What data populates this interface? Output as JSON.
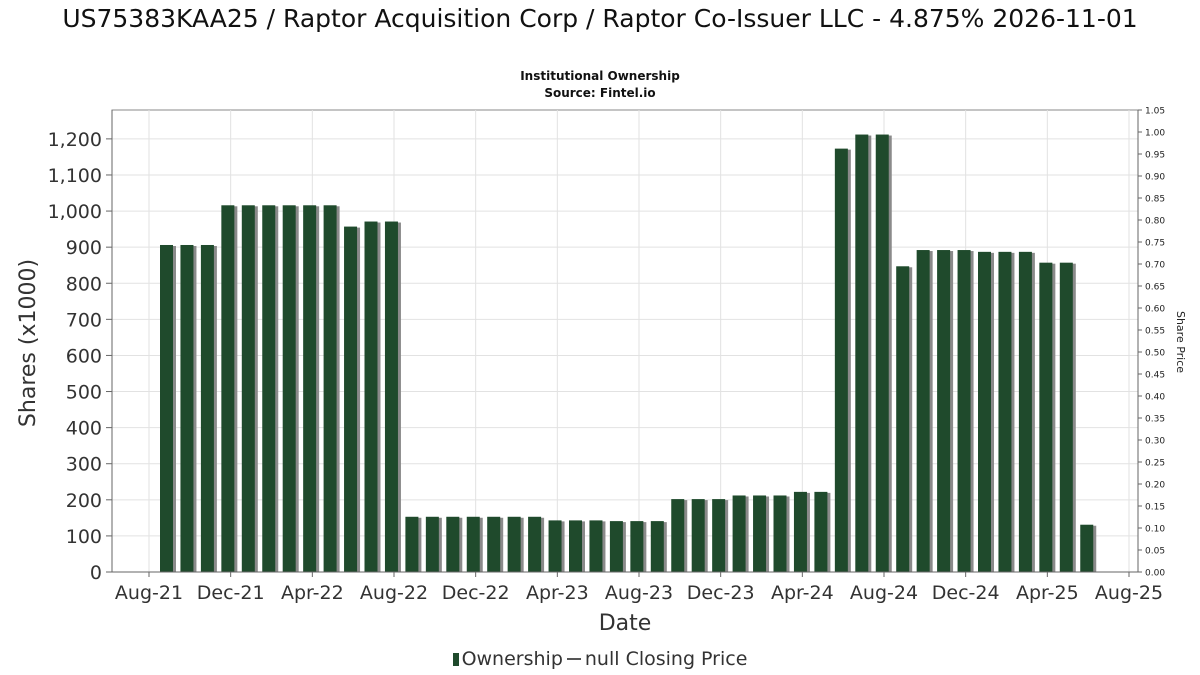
{
  "header": {
    "title": "US75383KAA25 / Raptor Acquisition Corp / Raptor Co-Issuer LLC - 4.875% 2026-11-01",
    "subtitle": "Institutional Ownership",
    "source": "Source: Fintel.io"
  },
  "legend": {
    "ownership": "Ownership",
    "price": "null Closing Price"
  },
  "colors": {
    "bar": "#1f4a2c",
    "bar_shadow": "#8a8a8a",
    "grid": "#e2e2e2",
    "axis": "#666666"
  },
  "chart_data": {
    "type": "bar",
    "xlabel": "Date",
    "ylabel": "Shares (x1000)",
    "y2label": "Share Price",
    "ylim": [
      0,
      1280
    ],
    "yticks": [
      0,
      100,
      200,
      300,
      400,
      500,
      600,
      700,
      800,
      900,
      1000,
      1100,
      1200
    ],
    "ytick_labels": [
      "0",
      "100",
      "200",
      "300",
      "400",
      "500",
      "600",
      "700",
      "800",
      "900",
      "1,000",
      "1,100",
      "1,200"
    ],
    "y2lim": [
      0,
      1.05
    ],
    "y2ticks": [
      "0.00",
      "0.05",
      "0.10",
      "0.15",
      "0.20",
      "0.25",
      "0.30",
      "0.35",
      "0.40",
      "0.45",
      "0.50",
      "0.55",
      "0.60",
      "0.65",
      "0.70",
      "0.75",
      "0.80",
      "0.85",
      "0.90",
      "0.95",
      "1.00",
      "1.05"
    ],
    "xticks": [
      "Aug-21",
      "Dec-21",
      "Apr-22",
      "Aug-22",
      "Dec-22",
      "Apr-23",
      "Aug-23",
      "Dec-23",
      "Apr-24",
      "Aug-24",
      "Dec-24",
      "Apr-25",
      "Aug-25"
    ],
    "grid": true,
    "legend_position": "bottom",
    "series": [
      {
        "name": "Ownership",
        "values": [
          906,
          906,
          906,
          1016,
          1016,
          1016,
          1016,
          1016,
          1016,
          957,
          971,
          971,
          153,
          153,
          153,
          153,
          153,
          153,
          153,
          143,
          143,
          143,
          141,
          141,
          141,
          202,
          202,
          202,
          212,
          212,
          212,
          222,
          222,
          1173,
          1212,
          1212,
          847,
          892,
          892,
          892,
          887,
          887,
          887,
          857,
          857,
          131
        ]
      }
    ]
  }
}
